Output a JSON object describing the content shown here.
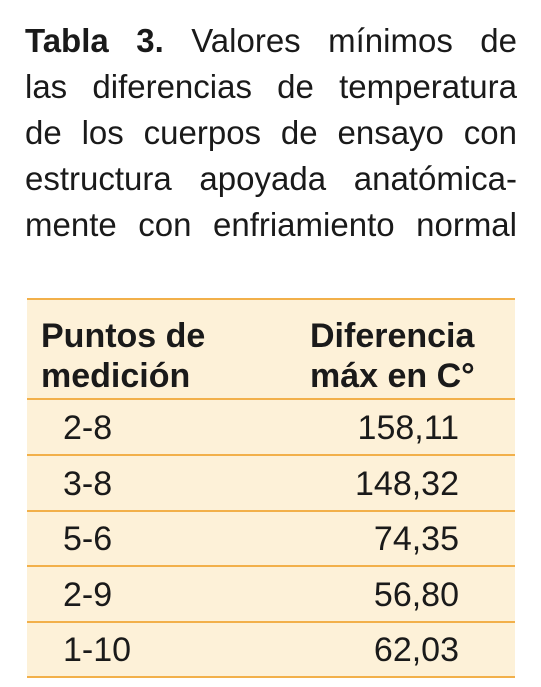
{
  "caption": {
    "label": "Tabla 3.",
    "lines": [
      "Valores mínimos de",
      "las diferencias de temperatura",
      "de los cuerpos de ensayo con",
      "estructura apoyada anatómica-",
      "mente con enfriamiento normal"
    ]
  },
  "table": {
    "headers": [
      [
        "Puntos de",
        "medición"
      ],
      [
        "Diferencia",
        "máx en C°"
      ]
    ],
    "rows": [
      [
        "2-8",
        "158,11"
      ],
      [
        "3-8",
        "148,32"
      ],
      [
        "5-6",
        "74,35"
      ],
      [
        "2-9",
        "56,80"
      ],
      [
        "1-10",
        "62,03"
      ]
    ]
  }
}
